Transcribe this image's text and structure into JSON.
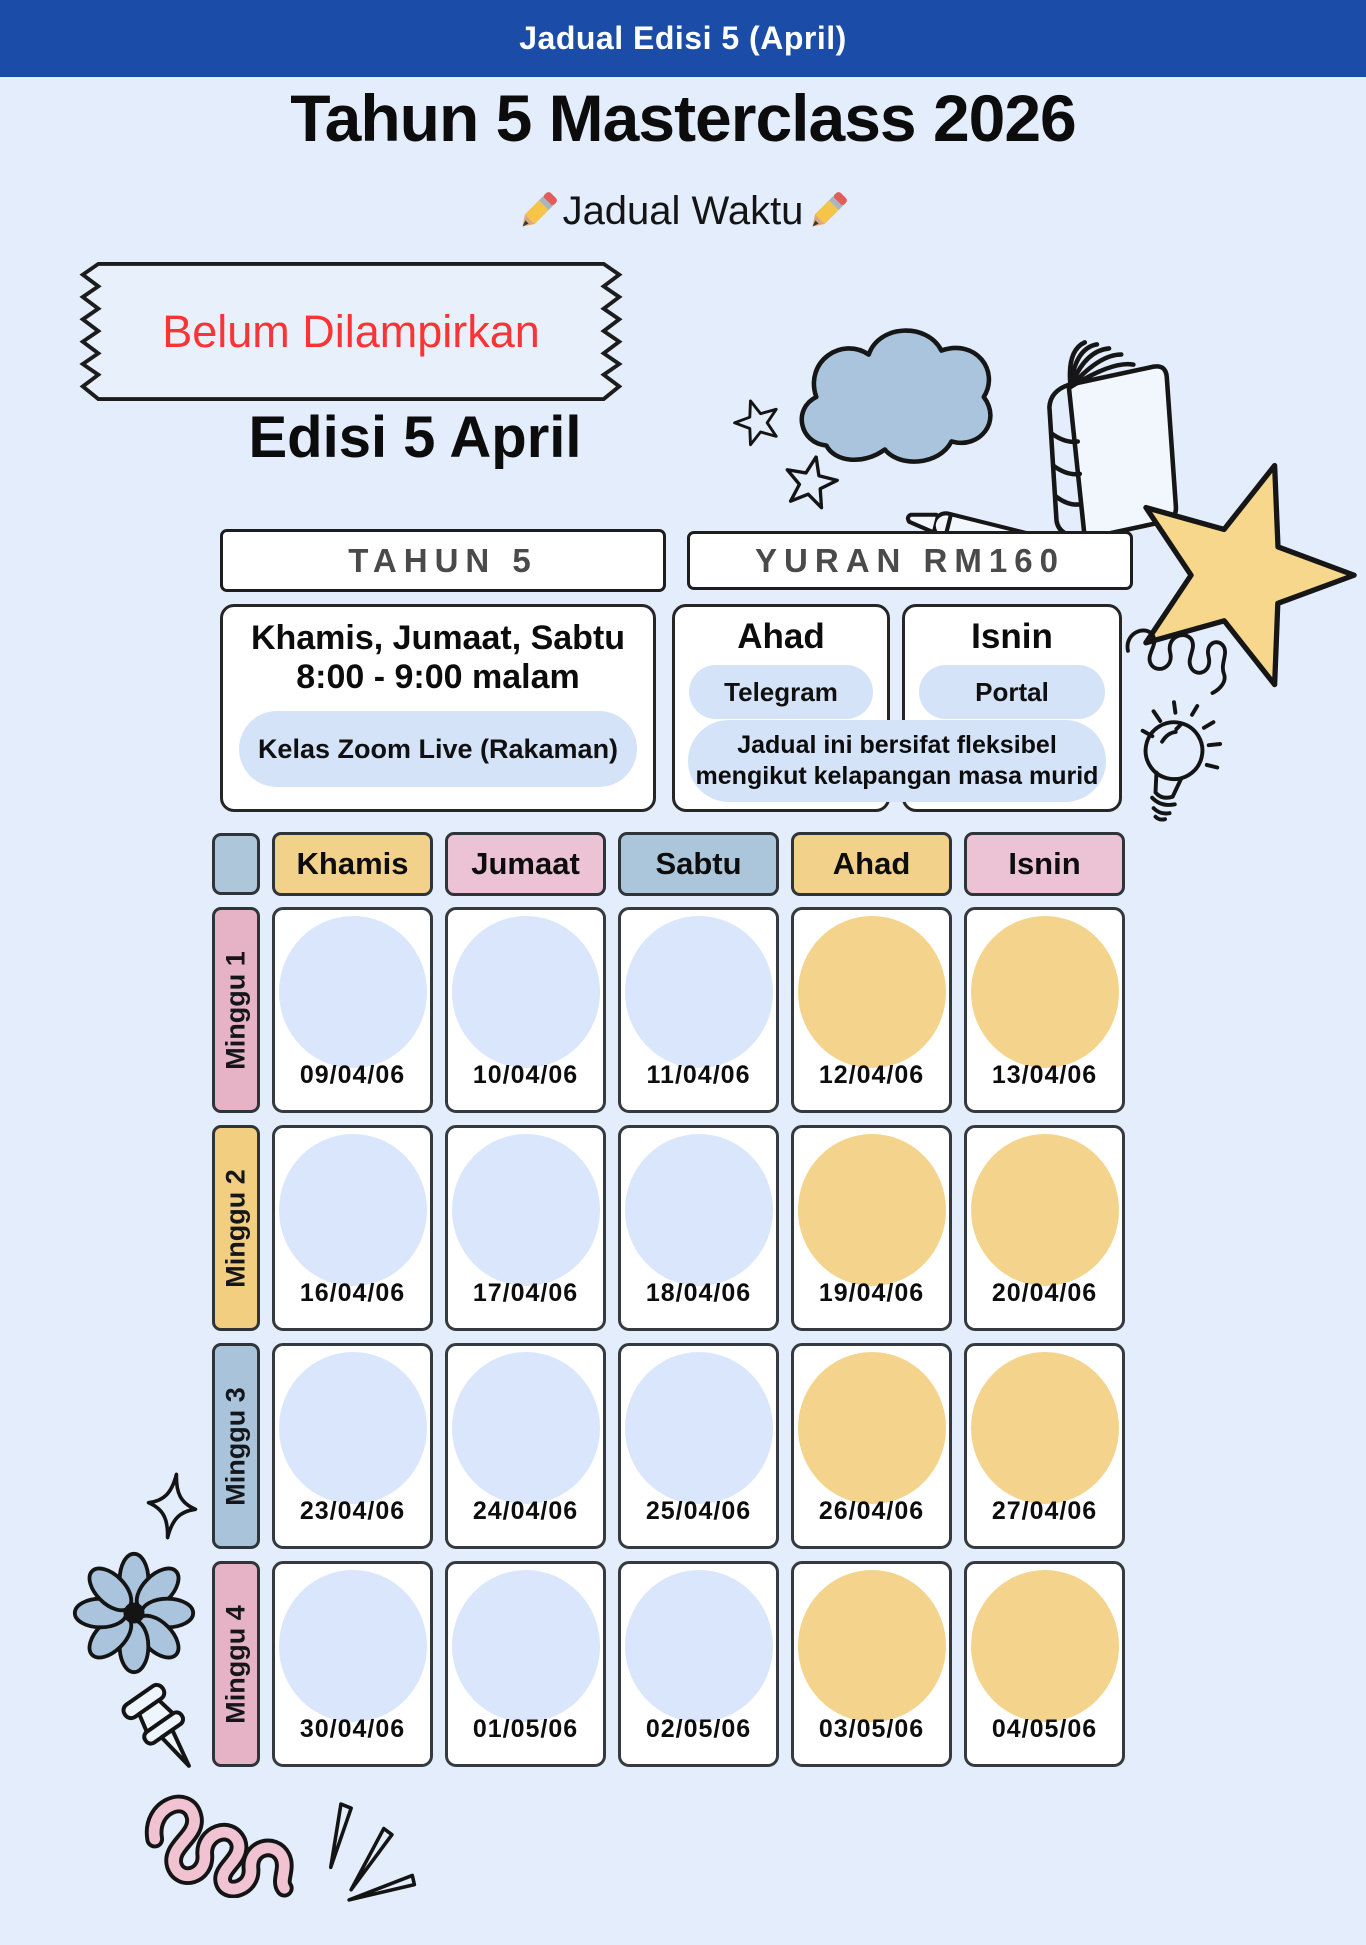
{
  "top_bar": {
    "label": "Jadual Edisi 5 (April)",
    "bg": "#1B4CA7"
  },
  "title": "Tahun 5 Masterclass 2026",
  "subtitle": "Jadual Waktu",
  "stamp": {
    "label": "Belum Dilampirkan",
    "color": "#F93434"
  },
  "edition": "Edisi 5 April",
  "badges": {
    "tahun": "TAHUN 5",
    "yuran": "YURAN RM160"
  },
  "info": {
    "days": "Khamis, Jumaat, Sabtu",
    "time": "8:00 - 9:00 malam",
    "mode": "Kelas Zoom Live (Rakaman)",
    "ahad": {
      "title": "Ahad",
      "pill": "Telegram"
    },
    "isnin": {
      "title": "Isnin",
      "pill": "Portal"
    },
    "note1": "Jadual ini bersifat fleksibel",
    "note2": "mengikut kelapangan masa murid"
  },
  "colors": {
    "page_bg": "#E3EDFB",
    "pill": "#D5E3F9",
    "circle_blue": "#D9E6FB",
    "circle_yellow": "#F4D48D"
  },
  "calendar": {
    "corner_bg": "#AEC6DA",
    "day_headers": [
      {
        "label": "Khamis",
        "bg": "#F2D28A",
        "circle": "#D9E6FB"
      },
      {
        "label": "Jumaat",
        "bg": "#ECC3D4",
        "circle": "#D9E6FB"
      },
      {
        "label": "Sabtu",
        "bg": "#ABC6DB",
        "circle": "#D9E6FB"
      },
      {
        "label": "Ahad",
        "bg": "#F2D28A",
        "circle": "#F4D48D"
      },
      {
        "label": "Isnin",
        "bg": "#ECC3D4",
        "circle": "#F4D48D"
      }
    ],
    "weeks": [
      {
        "label": "Minggu 1",
        "bg": "#E6B2C5",
        "dates": [
          "09/04/06",
          "10/04/06",
          "11/04/06",
          "12/04/06",
          "13/04/06"
        ]
      },
      {
        "label": "Minggu 2",
        "bg": "#F1CE80",
        "dates": [
          "16/04/06",
          "17/04/06",
          "18/04/06",
          "19/04/06",
          "20/04/06"
        ]
      },
      {
        "label": "Minggu 3",
        "bg": "#A9C4DA",
        "dates": [
          "23/04/06",
          "24/04/06",
          "25/04/06",
          "26/04/06",
          "27/04/06"
        ]
      },
      {
        "label": "Minggu 4",
        "bg": "#E6B2C5",
        "dates": [
          "30/04/06",
          "01/05/06",
          "02/05/06",
          "03/05/06",
          "04/05/06"
        ]
      }
    ]
  },
  "icons": {
    "subtitle_icon": "pencil-icon",
    "decorations": [
      "star-icon",
      "cloud-icon",
      "book-icon",
      "pen-icon",
      "big-star-icon",
      "spring-squiggle-icon",
      "lightbulb-icon",
      "sparkle-icon",
      "flower-icon",
      "pushpin-icon",
      "pink-squiggle-icon",
      "speed-lines-icon"
    ]
  }
}
